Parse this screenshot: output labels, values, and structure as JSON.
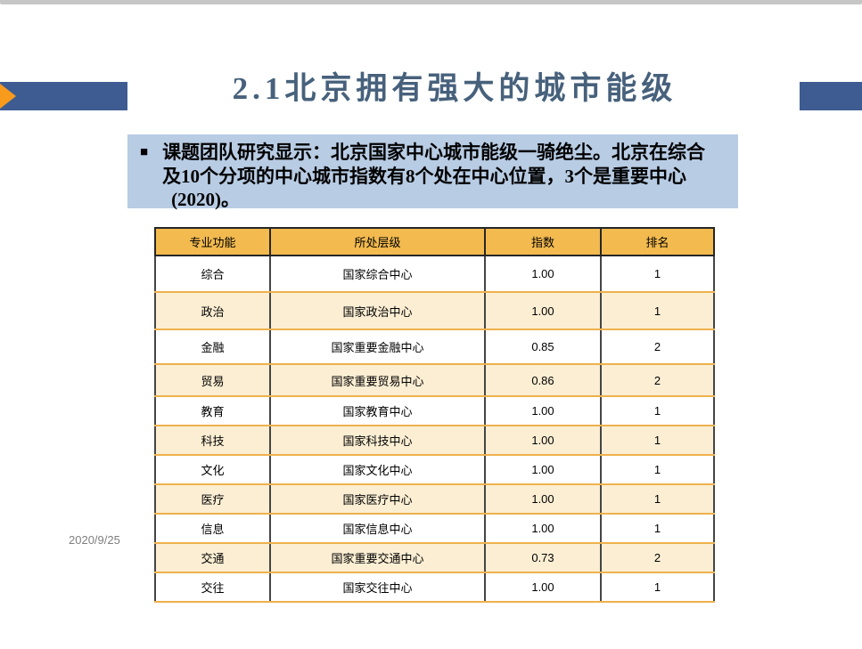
{
  "slide": {
    "title": "2.1北京拥有强大的城市能级",
    "date": "2020/9/25"
  },
  "callout": {
    "bullet": "■",
    "lines": [
      "课题团队研究显示：北京国家中心城市能级一骑绝尘。北京在综合",
      "及10个分项的中心城市指数有8个处在中心位置，3个是重要中心",
      "(2020)。"
    ]
  },
  "table": {
    "columns": [
      "专业功能",
      "所处层级",
      "指数",
      "排名"
    ],
    "rows": [
      {
        "cells": [
          "综合",
          "国家综合中心",
          "1.00",
          "1"
        ]
      },
      {
        "cells": [
          "政治",
          "国家政治中心",
          "1.00",
          "1"
        ]
      },
      {
        "cells": [
          "金融",
          "国家重要金融中心",
          "0.85",
          "2"
        ]
      },
      {
        "cells": [
          "贸易",
          "国家重要贸易中心",
          "0.86",
          "2"
        ]
      },
      {
        "cells": [
          "教育",
          "国家教育中心",
          "1.00",
          "1"
        ]
      },
      {
        "cells": [
          "科技",
          "国家科技中心",
          "1.00",
          "1"
        ]
      },
      {
        "cells": [
          "文化",
          "国家文化中心",
          "1.00",
          "1"
        ]
      },
      {
        "cells": [
          "医疗",
          "国家医疗中心",
          "1.00",
          "1"
        ]
      },
      {
        "cells": [
          "信息",
          "国家信息中心",
          "1.00",
          "1"
        ]
      },
      {
        "cells": [
          "交通",
          "国家重要交通中心",
          "0.73",
          "2"
        ]
      },
      {
        "cells": [
          "交往",
          "国家交往中心",
          "1.00",
          "1"
        ]
      }
    ]
  },
  "colors": {
    "accent_blue": "#3e5c92",
    "accent_orange": "#f89b1c",
    "title_color": "#47617c",
    "callout_bg": "#b8cce4",
    "table_header_bg": "#f2ba4f",
    "table_row_alt_bg": "#fbeed3",
    "table_border_orange": "#eeb14c",
    "table_border_dark": "#454545",
    "top_strip": "#c6c6c6"
  }
}
